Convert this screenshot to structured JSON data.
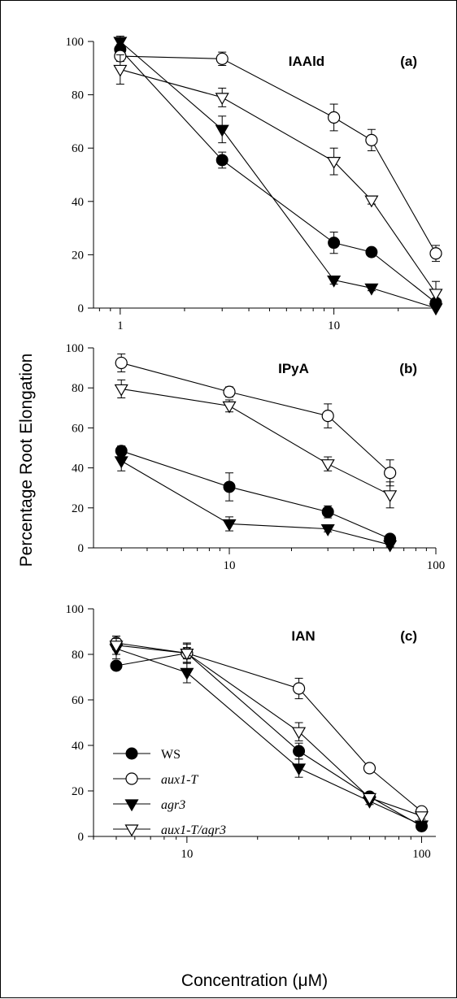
{
  "chart_data": [
    {
      "type": "line",
      "panel": "(a)",
      "title": "IAAld",
      "xscale": "log",
      "xlim": [
        0.75,
        30
      ],
      "ylim": [
        0,
        100
      ],
      "xticklabels": [
        "1",
        "10"
      ],
      "yticks": [
        0,
        20,
        40,
        60,
        80,
        100
      ],
      "series": [
        {
          "name": "WS",
          "marker": "filled-circle",
          "x": [
            1,
            3,
            10,
            15,
            30
          ],
          "y": [
            97,
            55.5,
            24.5,
            21,
            2
          ],
          "err": [
            2,
            3,
            4,
            1.5,
            1.5
          ]
        },
        {
          "name": "aux1-T",
          "marker": "open-circle",
          "x": [
            1,
            3,
            10,
            15,
            30
          ],
          "y": [
            94.5,
            93.5,
            71.5,
            63,
            20.5
          ],
          "err": [
            2,
            2.5,
            5,
            4,
            3
          ]
        },
        {
          "name": "agr3",
          "marker": "filled-triangle",
          "x": [
            1,
            3,
            10,
            15,
            30
          ],
          "y": [
            100,
            67,
            10.5,
            7.5,
            0
          ],
          "err": [
            2,
            5,
            1.5,
            1,
            1
          ]
        },
        {
          "name": "aux1-T/agr3",
          "marker": "open-triangle",
          "x": [
            1,
            3,
            10,
            15,
            30
          ],
          "y": [
            89.5,
            79,
            55,
            40.5,
            5.5
          ],
          "err": [
            5.5,
            3.5,
            5,
            1.5,
            4.5
          ]
        }
      ]
    },
    {
      "type": "line",
      "panel": "(b)",
      "title": "IPyA",
      "xscale": "log",
      "xlim": [
        2.2,
        100
      ],
      "ylim": [
        0,
        100
      ],
      "xticklabels": [
        "10",
        "100"
      ],
      "yticks": [
        0,
        20,
        40,
        60,
        80,
        100
      ],
      "series": [
        {
          "name": "WS",
          "marker": "filled-circle",
          "x": [
            3,
            10,
            30,
            60
          ],
          "y": [
            48.5,
            30.5,
            18,
            4.5
          ],
          "err": [
            2.5,
            7,
            3,
            1.5
          ]
        },
        {
          "name": "aux1-T",
          "marker": "open-circle",
          "x": [
            3,
            10,
            30,
            60
          ],
          "y": [
            92.5,
            78,
            66,
            37.5
          ],
          "err": [
            4.5,
            2.5,
            6,
            6.5
          ]
        },
        {
          "name": "agr3",
          "marker": "filled-triangle",
          "x": [
            3,
            10,
            30,
            60
          ],
          "y": [
            43.5,
            12,
            9.5,
            1.5
          ],
          "err": [
            5,
            3.5,
            1.5,
            1
          ]
        },
        {
          "name": "aux1-T/agr3",
          "marker": "open-triangle",
          "x": [
            3,
            10,
            30,
            60
          ],
          "y": [
            79.5,
            71,
            42,
            26.5
          ],
          "err": [
            4.5,
            3,
            3.5,
            6.5
          ]
        }
      ]
    },
    {
      "type": "line",
      "panel": "(c)",
      "title": "IAN",
      "xscale": "log",
      "xlim": [
        4,
        115
      ],
      "ylim": [
        0,
        100
      ],
      "xticklabels": [
        "10",
        "100"
      ],
      "yticks": [
        0,
        20,
        40,
        60,
        80,
        100
      ],
      "series": [
        {
          "name": "WS",
          "marker": "filled-circle",
          "x": [
            5,
            10,
            30,
            60,
            100
          ],
          "y": [
            75,
            80.5,
            37.5,
            17.5,
            4.5
          ],
          "err": [
            1.5,
            2.5,
            3.5,
            1.5,
            1.5
          ]
        },
        {
          "name": "aux1-T",
          "marker": "open-circle",
          "x": [
            5,
            10,
            30,
            60,
            100
          ],
          "y": [
            85,
            80.5,
            65,
            30,
            11
          ],
          "err": [
            3,
            4.5,
            4.5,
            1.5,
            1.5
          ]
        },
        {
          "name": "agr3",
          "marker": "filled-triangle",
          "x": [
            5,
            10,
            30,
            60,
            100
          ],
          "y": [
            82.5,
            72,
            30,
            15.5,
            5
          ],
          "err": [
            4.5,
            4.5,
            4,
            1.5,
            1
          ]
        },
        {
          "name": "aux1-T/agr3",
          "marker": "open-triangle",
          "x": [
            5,
            10,
            30,
            60,
            100
          ],
          "y": [
            84,
            80.5,
            46,
            17,
            9
          ],
          "err": [
            4,
            4,
            4,
            1.5,
            1.5
          ]
        }
      ]
    }
  ],
  "axis_labels": {
    "ylabel": "Percentage Root Elongation",
    "xlabel": "Concentration (μM)"
  },
  "legend": {
    "position": "lower-left of panel (c)",
    "entries": [
      "WS",
      "aux1-T",
      "agr3",
      "aux1-T/agr3"
    ]
  }
}
